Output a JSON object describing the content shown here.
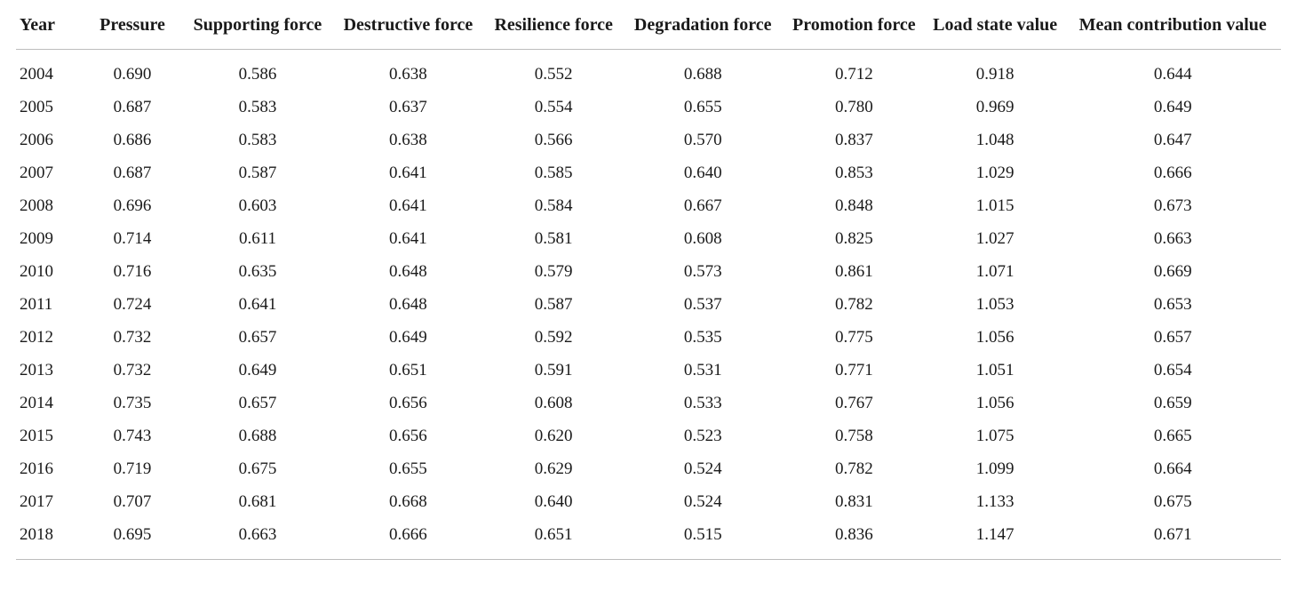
{
  "table": {
    "type": "table",
    "background_color": "#ffffff",
    "text_color": "#1a1a1a",
    "rule_color": "#bdbdbd",
    "header_fontsize": 20,
    "header_fontweight": 700,
    "body_fontsize": 19,
    "column_widths_pct": [
      5.2,
      8.0,
      11.8,
      12.0,
      11.0,
      12.6,
      11.3,
      11.0,
      17.1
    ],
    "column_align": [
      "left",
      "center",
      "center",
      "center",
      "center",
      "center",
      "center",
      "center",
      "center"
    ],
    "columns": [
      "Year",
      "Pressure",
      "Supporting force",
      "Destructive force",
      "Resilience force",
      "Degradation force",
      "Promotion force",
      "Load state value",
      "Mean contribution value"
    ],
    "rows": [
      [
        "2004",
        "0.690",
        "0.586",
        "0.638",
        "0.552",
        "0.688",
        "0.712",
        "0.918",
        "0.644"
      ],
      [
        "2005",
        "0.687",
        "0.583",
        "0.637",
        "0.554",
        "0.655",
        "0.780",
        "0.969",
        "0.649"
      ],
      [
        "2006",
        "0.686",
        "0.583",
        "0.638",
        "0.566",
        "0.570",
        "0.837",
        "1.048",
        "0.647"
      ],
      [
        "2007",
        "0.687",
        "0.587",
        "0.641",
        "0.585",
        "0.640",
        "0.853",
        "1.029",
        "0.666"
      ],
      [
        "2008",
        "0.696",
        "0.603",
        "0.641",
        "0.584",
        "0.667",
        "0.848",
        "1.015",
        "0.673"
      ],
      [
        "2009",
        "0.714",
        "0.611",
        "0.641",
        "0.581",
        "0.608",
        "0.825",
        "1.027",
        "0.663"
      ],
      [
        "2010",
        "0.716",
        "0.635",
        "0.648",
        "0.579",
        "0.573",
        "0.861",
        "1.071",
        "0.669"
      ],
      [
        "2011",
        "0.724",
        "0.641",
        "0.648",
        "0.587",
        "0.537",
        "0.782",
        "1.053",
        "0.653"
      ],
      [
        "2012",
        "0.732",
        "0.657",
        "0.649",
        "0.592",
        "0.535",
        "0.775",
        "1.056",
        "0.657"
      ],
      [
        "2013",
        "0.732",
        "0.649",
        "0.651",
        "0.591",
        "0.531",
        "0.771",
        "1.051",
        "0.654"
      ],
      [
        "2014",
        "0.735",
        "0.657",
        "0.656",
        "0.608",
        "0.533",
        "0.767",
        "1.056",
        "0.659"
      ],
      [
        "2015",
        "0.743",
        "0.688",
        "0.656",
        "0.620",
        "0.523",
        "0.758",
        "1.075",
        "0.665"
      ],
      [
        "2016",
        "0.719",
        "0.675",
        "0.655",
        "0.629",
        "0.524",
        "0.782",
        "1.099",
        "0.664"
      ],
      [
        "2017",
        "0.707",
        "0.681",
        "0.668",
        "0.640",
        "0.524",
        "0.831",
        "1.133",
        "0.675"
      ],
      [
        "2018",
        "0.695",
        "0.663",
        "0.666",
        "0.651",
        "0.515",
        "0.836",
        "1.147",
        "0.671"
      ]
    ]
  }
}
